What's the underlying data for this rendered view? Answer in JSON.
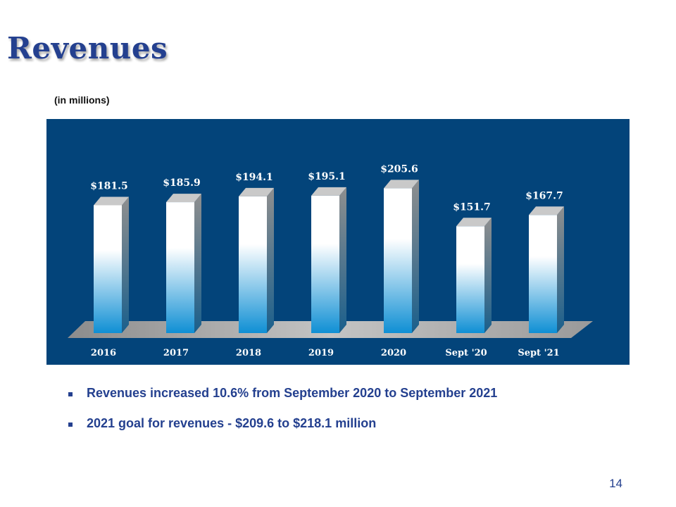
{
  "page": {
    "title": "Revenues",
    "units_note": "(in millions)",
    "page_number": "14"
  },
  "bullets": [
    "Revenues increased 10.6% from September 2020 to September 2021",
    "2021 goal for revenues - $209.6 to $218.1 million"
  ],
  "chart_data": {
    "type": "bar",
    "categories": [
      "2016",
      "2017",
      "2018",
      "2019",
      "2020",
      "Sept '20",
      "Sept '21"
    ],
    "values": [
      181.5,
      185.9,
      194.1,
      195.1,
      205.6,
      151.7,
      167.7
    ],
    "value_labels": [
      "$181.5",
      "$185.9",
      "$194.1",
      "$195.1",
      "$205.6",
      "$151.7",
      "$167.7"
    ],
    "ylim": [
      0,
      230
    ],
    "style": "3d-column",
    "colors": {
      "panel": "#03447a",
      "bar_top": "#ffffff",
      "bar_bottom": "#0f8fd4",
      "bar_side": "#9a9a9a",
      "bar_cap": "#c9c9c9",
      "floor": "#a8a8a8",
      "text": "#ffffff"
    }
  }
}
